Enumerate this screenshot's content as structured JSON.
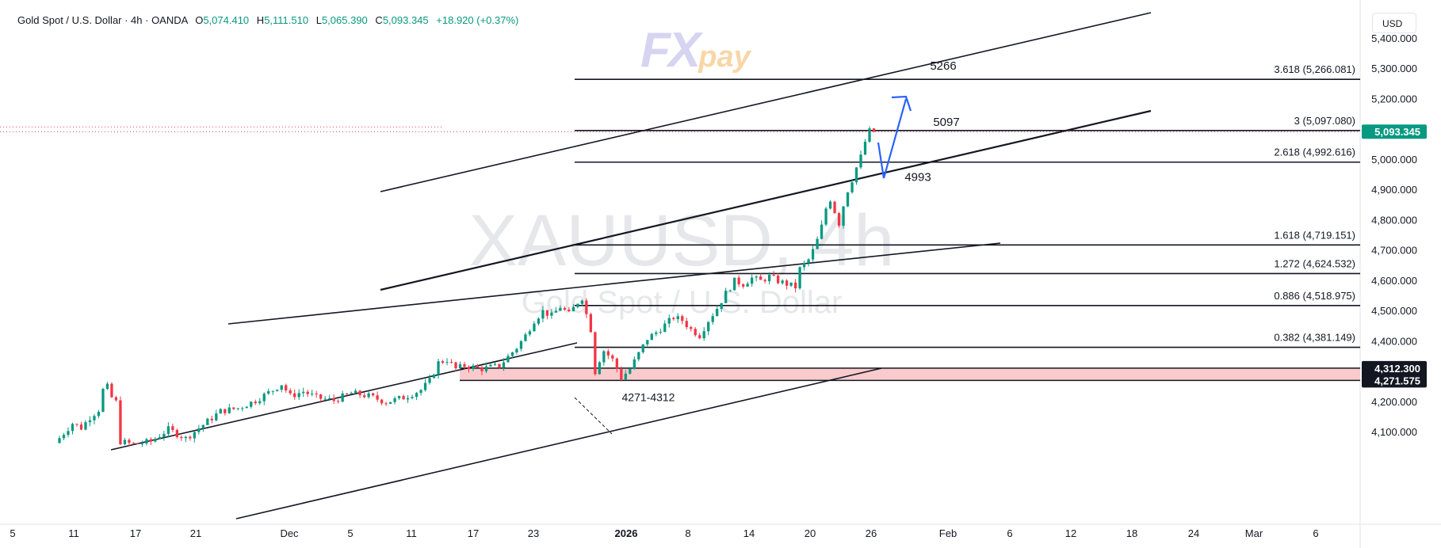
{
  "header": {
    "symbol": "Gold Spot / U.S. Dollar · 4h · OANDA",
    "o_label": "O",
    "o_val": "5,074.410",
    "h_label": "H",
    "h_val": "5,111.510",
    "l_label": "L",
    "l_val": "5,065.390",
    "c_label": "C",
    "c_val": "5,093.345",
    "change": "+18.920 (+0.37%)"
  },
  "currency_button": "USD",
  "logo": {
    "fx": "FX",
    "pay": "pay"
  },
  "colors": {
    "up": "#089981",
    "down": "#f23645",
    "zone_fill": "#f9c5c8",
    "arrow": "#2962ff",
    "price_badge": "#089981"
  },
  "chart_data": {
    "type": "candlestick",
    "timeframe": "4h",
    "watermark_ticker": "XAUUSD, 4h",
    "watermark_name": "Gold Spot / U.S. Dollar",
    "ylim": [
      4050,
      5460
    ],
    "y_ticks": [
      {
        "label": "4,100.000",
        "value": 4100
      },
      {
        "label": "4,200.000",
        "value": 4200
      },
      {
        "label": "4,300.000",
        "value": 4300
      },
      {
        "label": "4,400.000",
        "value": 4400
      },
      {
        "label": "4,500.000",
        "value": 4500
      },
      {
        "label": "4,600.000",
        "value": 4600
      },
      {
        "label": "4,700.000",
        "value": 4700
      },
      {
        "label": "4,800.000",
        "value": 4800
      },
      {
        "label": "4,900.000",
        "value": 4900
      },
      {
        "label": "5,000.000",
        "value": 5000
      },
      {
        "label": "5,100.000",
        "value": 5100
      },
      {
        "label": "5,200.000",
        "value": 5200
      },
      {
        "label": "5,300.000",
        "value": 5300
      },
      {
        "label": "5,400.000",
        "value": 5400
      }
    ],
    "x_ticks": [
      {
        "label": "5",
        "bold": false
      },
      {
        "label": "11",
        "bold": false
      },
      {
        "label": "17",
        "bold": false
      },
      {
        "label": "21",
        "bold": false
      },
      {
        "label": "Dec",
        "bold": false
      },
      {
        "label": "5",
        "bold": false
      },
      {
        "label": "11",
        "bold": false
      },
      {
        "label": "17",
        "bold": false
      },
      {
        "label": "23",
        "bold": false
      },
      {
        "label": "2026",
        "bold": true
      },
      {
        "label": "8",
        "bold": false
      },
      {
        "label": "14",
        "bold": false
      },
      {
        "label": "20",
        "bold": false
      },
      {
        "label": "26",
        "bold": false
      },
      {
        "label": "Feb",
        "bold": false
      },
      {
        "label": "6",
        "bold": false
      },
      {
        "label": "12",
        "bold": false
      },
      {
        "label": "18",
        "bold": false
      },
      {
        "label": "24",
        "bold": false
      },
      {
        "label": "Mar",
        "bold": false
      },
      {
        "label": "6",
        "bold": false
      }
    ],
    "price_path": [
      [
        0,
        4065
      ],
      [
        4,
        4130
      ],
      [
        6,
        4115
      ],
      [
        8,
        4150
      ],
      [
        10,
        4175
      ],
      [
        11,
        4240
      ],
      [
        12,
        4250
      ],
      [
        13,
        4215
      ],
      [
        14,
        4200
      ],
      [
        15,
        4070
      ],
      [
        18,
        4060
      ],
      [
        22,
        4070
      ],
      [
        26,
        4110
      ],
      [
        30,
        4080
      ],
      [
        34,
        4125
      ],
      [
        38,
        4170
      ],
      [
        42,
        4180
      ],
      [
        46,
        4205
      ],
      [
        50,
        4240
      ],
      [
        52,
        4260
      ],
      [
        54,
        4220
      ],
      [
        57,
        4235
      ],
      [
        60,
        4215
      ],
      [
        64,
        4205
      ],
      [
        68,
        4230
      ],
      [
        72,
        4220
      ],
      [
        76,
        4200
      ],
      [
        80,
        4215
      ],
      [
        84,
        4240
      ],
      [
        86,
        4270
      ],
      [
        88,
        4330
      ],
      [
        90,
        4340
      ],
      [
        92,
        4310
      ],
      [
        94,
        4320
      ],
      [
        98,
        4310
      ],
      [
        102,
        4320
      ],
      [
        106,
        4380
      ],
      [
        108,
        4420
      ],
      [
        110,
        4470
      ],
      [
        112,
        4500
      ],
      [
        114,
        4485
      ],
      [
        116,
        4515
      ],
      [
        118,
        4490
      ],
      [
        120,
        4530
      ],
      [
        121,
        4545
      ],
      [
        122,
        4490
      ],
      [
        123,
        4440
      ],
      [
        124,
        4300
      ],
      [
        125,
        4340
      ],
      [
        126,
        4370
      ],
      [
        128,
        4340
      ],
      [
        130,
        4280
      ],
      [
        132,
        4310
      ],
      [
        134,
        4360
      ],
      [
        136,
        4410
      ],
      [
        138,
        4430
      ],
      [
        140,
        4455
      ],
      [
        142,
        4480
      ],
      [
        144,
        4470
      ],
      [
        146,
        4440
      ],
      [
        148,
        4420
      ],
      [
        150,
        4470
      ],
      [
        152,
        4510
      ],
      [
        154,
        4560
      ],
      [
        156,
        4600
      ],
      [
        158,
        4590
      ],
      [
        160,
        4610
      ],
      [
        162,
        4600
      ],
      [
        164,
        4615
      ],
      [
        166,
        4600
      ],
      [
        168,
        4590
      ],
      [
        170,
        4580
      ],
      [
        171,
        4640
      ],
      [
        172,
        4655
      ],
      [
        173,
        4670
      ],
      [
        174,
        4700
      ],
      [
        175,
        4735
      ],
      [
        176,
        4780
      ],
      [
        177,
        4840
      ],
      [
        178,
        4870
      ],
      [
        179,
        4830
      ],
      [
        180,
        4790
      ],
      [
        181,
        4850
      ],
      [
        182,
        4900
      ],
      [
        183,
        4935
      ],
      [
        184,
        4975
      ],
      [
        185,
        5010
      ],
      [
        186,
        5060
      ],
      [
        187,
        5095
      ],
      [
        188,
        5093.345
      ]
    ],
    "fib_levels": [
      {
        "ratio": "3.618",
        "label": "3.618 (5,266.081)",
        "value": 5266.081,
        "tag": "5266"
      },
      {
        "ratio": "3",
        "label": "3 (5,097.080)",
        "value": 5097.08,
        "tag": "5097"
      },
      {
        "ratio": "2.618",
        "label": "2.618 (4,992.616)",
        "value": 4992.616,
        "tag": "4993"
      },
      {
        "ratio": "1.618",
        "label": "1.618 (4,719.151)",
        "value": 4719.151,
        "tag": ""
      },
      {
        "ratio": "1.272",
        "label": "1.272 (4,624.532)",
        "value": 4624.532,
        "tag": ""
      },
      {
        "ratio": "0.886",
        "label": "0.886 (4,518.975)",
        "value": 4518.975,
        "tag": ""
      },
      {
        "ratio": "0.382",
        "label": "0.382 (4,381.149)",
        "value": 4381.149,
        "tag": ""
      }
    ],
    "support_zone": {
      "low": 4271.575,
      "high": 4312.3,
      "label": "4271-4312",
      "low_label": "4,271.575",
      "high_label": "4,312.300"
    },
    "last_price": {
      "value": 5093.345,
      "label": "5,093.345"
    }
  }
}
